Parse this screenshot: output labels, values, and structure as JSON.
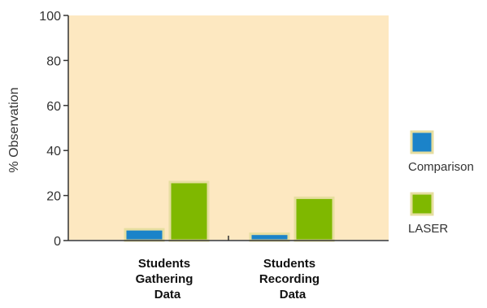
{
  "chart_data": {
    "type": "bar",
    "categories": [
      [
        "Students",
        "Gathering",
        "Data"
      ],
      [
        "Students",
        "Recording",
        "Data"
      ]
    ],
    "series": [
      {
        "name": "Comparison",
        "values": [
          5,
          3
        ],
        "color": "#1b83c9"
      },
      {
        "name": "LASER",
        "values": [
          26,
          19
        ],
        "color": "#7fb800"
      }
    ],
    "ylabel": "% Observation",
    "ylim": [
      0,
      100
    ],
    "yticks": [
      0,
      20,
      40,
      60,
      80,
      100
    ],
    "plot_background": "#fde8c1",
    "bar_outline": "#e6dea0",
    "legend_position": "right",
    "grid": false
  }
}
